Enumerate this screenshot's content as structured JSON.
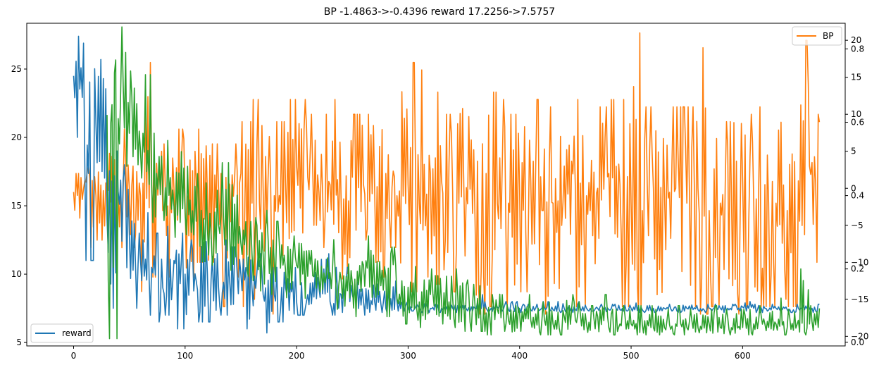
{
  "chart_data": {
    "type": "line",
    "title": "BP -1.4863->-0.4396 reward 17.2256->7.5757",
    "xlim": [
      -42,
      692
    ],
    "x_ticks": [
      0,
      100,
      200,
      300,
      400,
      500,
      600
    ],
    "axes": {
      "left": {
        "ylim": [
          4.75,
          28.35
        ],
        "ticks": [
          5,
          10,
          15,
          20,
          25
        ]
      },
      "right_outer": {
        "ylim": [
          -21.3,
          22.3
        ],
        "ticks": [
          -20,
          -15,
          -10,
          -5,
          0,
          5,
          10,
          15,
          20
        ]
      },
      "right_inner": {
        "ylim": [
          -0.01,
          0.87
        ],
        "ticks": [
          0.0,
          0.2,
          0.4,
          0.6,
          0.8
        ]
      }
    },
    "legend": [
      {
        "label": "reward",
        "color": "#1f77b4",
        "position": "lower-left"
      },
      {
        "label": "BP",
        "color": "#ff7f0e",
        "position": "upper-right"
      }
    ],
    "series": [
      {
        "name": "reward",
        "color": "#1f77b4",
        "axis": "left",
        "x_start": 0,
        "x_step": 10,
        "values": [
          24.5,
          18.5,
          21.0,
          14.0,
          16.0,
          13.0,
          11.0,
          10.5,
          9.0,
          11.0,
          10.0,
          9.5,
          10.0,
          9.0,
          9.5,
          10.0,
          9.0,
          8.5,
          8.5,
          9.0,
          8.0,
          8.5,
          9.0,
          8.0,
          8.5,
          8.5,
          8.0,
          8.0,
          7.5,
          8.0,
          7.5,
          7.5,
          7.5,
          7.5,
          7.5,
          7.4,
          7.5,
          7.5,
          7.6,
          7.4,
          7.5,
          7.4,
          7.5,
          7.4,
          7.5,
          7.4,
          7.5,
          7.5,
          7.4,
          7.4,
          7.5,
          7.4,
          7.5,
          7.5,
          7.6,
          7.5,
          7.4,
          7.5,
          7.5,
          7.4,
          7.6,
          7.5,
          7.5,
          7.5,
          7.4,
          7.5,
          7.5
        ],
        "y_min": [
          20.0,
          11.0,
          11.0,
          7.5,
          6.0,
          7.5,
          7.0,
          6.5,
          7.0,
          6.0,
          6.5,
          6.5,
          6.5,
          7.0,
          6.5,
          6.0,
          6.5,
          5.7,
          6.5,
          6.0,
          7.0,
          7.0,
          7.0,
          7.0,
          7.2,
          7.2,
          7.0,
          7.2,
          7.2,
          7.3,
          7.3,
          7.2,
          7.2,
          7.3,
          7.2,
          7.2,
          7.3,
          7.2,
          7.3,
          7.2,
          7.2,
          7.3,
          7.3,
          7.2,
          7.2,
          7.3,
          7.3,
          7.2,
          7.2,
          7.3,
          7.2,
          7.2,
          7.2,
          7.3,
          7.2,
          7.3,
          7.2,
          7.3,
          7.2,
          7.2,
          7.3,
          7.2,
          7.3,
          7.2,
          7.2,
          7.2,
          7.2
        ],
        "y_max": [
          27.4,
          26.7,
          25.7,
          22.0,
          18.0,
          15.0,
          14.5,
          13.0,
          13.5,
          13.0,
          12.5,
          13.5,
          12.5,
          12.5,
          12.0,
          12.0,
          11.5,
          10.5,
          10.5,
          11.0,
          10.5,
          10.5,
          11.5,
          10.5,
          10.5,
          10.5,
          10.0,
          10.0,
          9.5,
          7.9,
          7.8,
          7.9,
          8.0,
          7.8,
          7.8,
          7.7,
          8.5,
          7.8,
          8.0,
          8.0,
          7.8,
          7.8,
          8.0,
          8.0,
          7.8,
          8.0,
          7.8,
          7.8,
          7.8,
          7.8,
          8.0,
          7.8,
          8.0,
          7.8,
          7.8,
          7.8,
          7.8,
          7.8,
          7.8,
          7.8,
          8.0,
          7.8,
          7.8,
          7.8,
          7.8,
          7.8,
          7.8
        ]
      },
      {
        "name": "BP",
        "color": "#ff7f0e",
        "axis": "right_outer",
        "x_start": 0,
        "x_step": 10,
        "values": [
          -0.5,
          1.0,
          -1.0,
          0.5,
          -0.5,
          0.0,
          -1.0,
          2.0,
          -3.0,
          0.0,
          -2.0,
          1.0,
          -1.0,
          0.0,
          0.5,
          2.0,
          -2.0,
          0.0,
          -1.0,
          1.0,
          3.0,
          1.5,
          -0.5,
          0.5,
          -2.0,
          1.5,
          0.5,
          0.0,
          2.0,
          -1.0,
          0.5,
          -2.0,
          2.0,
          1.0,
          -0.5,
          0.0,
          -4.0,
          2.0,
          -2.0,
          -2.0,
          0.0,
          1.0,
          -3.0,
          -2.0,
          3.0,
          0.0,
          -1.0,
          0.0,
          2.0,
          0.5,
          -2.0,
          -3.0,
          0.0,
          -1.0,
          0.0,
          -2.0,
          0.0,
          -3.0,
          -2.0,
          -1.0,
          1.0,
          -2.0,
          0.5,
          -2.0,
          -3.0,
          1.0,
          3.0
        ],
        "y_min": [
          -5.0,
          -8.0,
          -7.0,
          -10.0,
          -15.0,
          -8.0,
          -17.0,
          -12.0,
          -12.0,
          -9.0,
          -14.0,
          -10.0,
          -12.0,
          -16.0,
          -12.0,
          -16.0,
          -15.0,
          -17.0,
          -12.0,
          -10.0,
          -10.0,
          -5.0,
          -8.0,
          -6.0,
          -15.0,
          -10.0,
          -7.0,
          -12.0,
          -8.0,
          -15.0,
          -14.0,
          -12.0,
          -13.0,
          -11.0,
          -14.0,
          -14.0,
          -17.0,
          -16.0,
          -17.0,
          -17.0,
          -14.0,
          -15.0,
          -17.0,
          -16.0,
          -12.0,
          -16.0,
          -16.0,
          -15.0,
          -10.0,
          -16.0,
          -17.0,
          -16.0,
          -17.0,
          -16.0,
          -16.0,
          -16.0,
          -17.0,
          -16.0,
          -15.0,
          -17.0,
          -16.0,
          -16.0,
          -16.0,
          -15.0,
          -16.0,
          -16.0,
          -10.0
        ],
        "y_max": [
          2.0,
          3.0,
          3.0,
          6.0,
          8.0,
          3.0,
          17.0,
          5.0,
          6.0,
          8.0,
          5.0,
          8.0,
          6.0,
          7.0,
          6.0,
          9.0,
          12.0,
          7.0,
          9.0,
          12.0,
          12.0,
          10.0,
          10.0,
          12.0,
          10.0,
          10.0,
          10.0,
          10.0,
          9.0,
          17.0,
          17.0,
          16.0,
          13.0,
          10.0,
          18.0,
          12.0,
          12.0,
          13.0,
          12.0,
          10.0,
          10.0,
          12.0,
          11.0,
          11.0,
          10.0,
          12.0,
          10.0,
          11.0,
          12.0,
          12.0,
          21.0,
          11.0,
          11.0,
          11.0,
          11.0,
          11.0,
          19.0,
          11.0,
          9.0,
          11.0,
          10.0,
          11.0,
          10.0,
          12.0,
          10.0,
          20.0,
          10.0
        ]
      },
      {
        "name": "",
        "color": "#2ca02c",
        "axis": "right_inner",
        "x_start": 30,
        "x_step": 10,
        "values": [
          0.62,
          0.61,
          0.57,
          0.52,
          0.43,
          0.41,
          0.37,
          0.35,
          0.33,
          0.31,
          0.32,
          0.29,
          0.27,
          0.24,
          0.24,
          0.22,
          0.2,
          0.21,
          0.18,
          0.17,
          0.19,
          0.17,
          0.16,
          0.21,
          0.16,
          0.18,
          0.12,
          0.15,
          0.11,
          0.13,
          0.11,
          0.12,
          0.1,
          0.1,
          0.08,
          0.09,
          0.06,
          0.08,
          0.06,
          0.06,
          0.05,
          0.07,
          0.06,
          0.05,
          0.07,
          0.04,
          0.05,
          0.05,
          0.05,
          0.04,
          0.04,
          0.05,
          0.04,
          0.04,
          0.05,
          0.04,
          0.04,
          0.04,
          0.05,
          0.05,
          0.05,
          0.04,
          0.06,
          0.05
        ],
        "y_min": [
          0.01,
          0.48,
          0.45,
          0.33,
          0.3,
          0.28,
          0.27,
          0.23,
          0.22,
          0.21,
          0.18,
          0.16,
          0.18,
          0.14,
          0.13,
          0.13,
          0.1,
          0.1,
          0.11,
          0.09,
          0.09,
          0.08,
          0.07,
          0.1,
          0.08,
          0.07,
          0.05,
          0.06,
          0.04,
          0.06,
          0.05,
          0.04,
          0.03,
          0.03,
          0.02,
          0.03,
          0.02,
          0.03,
          0.02,
          0.02,
          0.02,
          0.02,
          0.02,
          0.02,
          0.02,
          0.02,
          0.02,
          0.02,
          0.02,
          0.02,
          0.02,
          0.02,
          0.02,
          0.02,
          0.02,
          0.02,
          0.02,
          0.02,
          0.02,
          0.02,
          0.02,
          0.02,
          0.02,
          0.02
        ],
        "y_max": [
          0.77,
          0.86,
          0.74,
          0.73,
          0.57,
          0.58,
          0.52,
          0.48,
          0.46,
          0.47,
          0.49,
          0.43,
          0.38,
          0.34,
          0.36,
          0.33,
          0.29,
          0.3,
          0.25,
          0.23,
          0.28,
          0.24,
          0.22,
          0.29,
          0.22,
          0.26,
          0.19,
          0.22,
          0.17,
          0.2,
          0.18,
          0.2,
          0.17,
          0.17,
          0.13,
          0.14,
          0.11,
          0.13,
          0.11,
          0.11,
          0.1,
          0.13,
          0.11,
          0.1,
          0.13,
          0.09,
          0.1,
          0.1,
          0.1,
          0.09,
          0.09,
          0.1,
          0.09,
          0.09,
          0.1,
          0.09,
          0.09,
          0.09,
          0.1,
          0.1,
          0.14,
          0.09,
          0.2,
          0.1
        ]
      }
    ]
  }
}
